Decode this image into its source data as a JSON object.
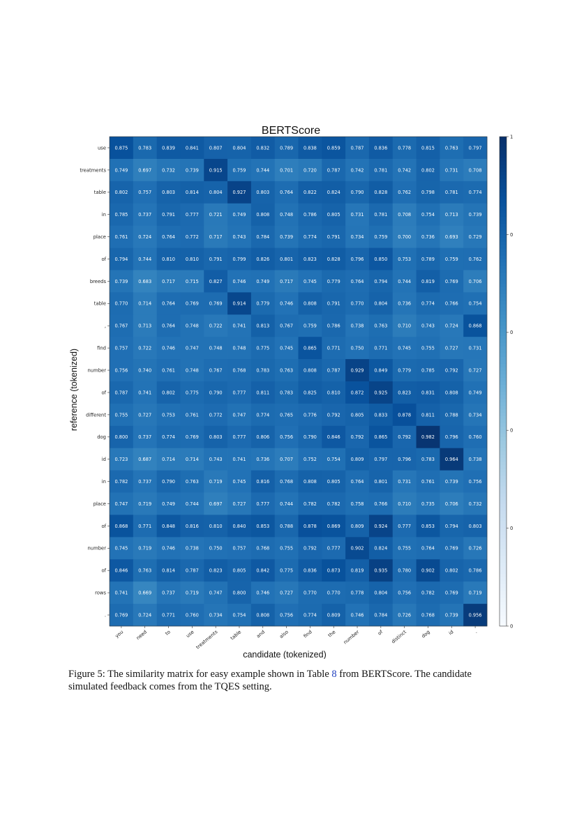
{
  "chart_data": {
    "type": "heatmap",
    "title": "BERTScore",
    "xlabel": "candidate (tokenized)",
    "ylabel": "reference (tokenized)",
    "x_labels": [
      "you",
      "need",
      "to",
      "use",
      "treatments",
      "table",
      "and",
      "also",
      "find",
      "the",
      "number",
      "of",
      "distinct",
      "dog",
      "id",
      "."
    ],
    "y_labels": [
      "use",
      "treatments",
      "table",
      "in",
      "place",
      "of",
      "breeds",
      "table",
      ",",
      "find",
      "number",
      "of",
      "different",
      "dog",
      "id",
      "in",
      "place",
      "of",
      "number",
      "of",
      "rows",
      "."
    ],
    "values": [
      [
        0.875,
        0.783,
        0.839,
        0.841,
        0.807,
        0.804,
        0.832,
        0.789,
        0.838,
        0.859,
        0.787,
        0.836,
        0.778,
        0.815,
        0.763,
        0.797
      ],
      [
        0.749,
        0.697,
        0.732,
        0.739,
        0.915,
        0.759,
        0.744,
        0.701,
        0.72,
        0.787,
        0.742,
        0.781,
        0.742,
        0.802,
        0.731,
        0.708
      ],
      [
        0.802,
        0.757,
        0.803,
        0.814,
        0.804,
        0.927,
        0.803,
        0.764,
        0.822,
        0.824,
        0.79,
        0.828,
        0.762,
        0.798,
        0.781,
        0.774
      ],
      [
        0.785,
        0.737,
        0.791,
        0.777,
        0.721,
        0.749,
        0.808,
        0.748,
        0.786,
        0.805,
        0.731,
        0.781,
        0.708,
        0.754,
        0.713,
        0.739
      ],
      [
        0.761,
        0.724,
        0.764,
        0.772,
        0.717,
        0.743,
        0.784,
        0.739,
        0.774,
        0.791,
        0.734,
        0.759,
        0.7,
        0.736,
        0.693,
        0.729
      ],
      [
        0.794,
        0.744,
        0.81,
        0.81,
        0.791,
        0.799,
        0.826,
        0.801,
        0.823,
        0.828,
        0.796,
        0.85,
        0.753,
        0.789,
        0.759,
        0.762
      ],
      [
        0.739,
        0.683,
        0.717,
        0.715,
        0.827,
        0.746,
        0.749,
        0.717,
        0.745,
        0.779,
        0.764,
        0.794,
        0.744,
        0.819,
        0.769,
        0.706
      ],
      [
        0.77,
        0.714,
        0.764,
        0.769,
        0.769,
        0.914,
        0.779,
        0.746,
        0.808,
        0.791,
        0.77,
        0.804,
        0.736,
        0.774,
        0.766,
        0.754
      ],
      [
        0.767,
        0.713,
        0.764,
        0.748,
        0.722,
        0.741,
        0.813,
        0.767,
        0.759,
        0.786,
        0.738,
        0.763,
        0.71,
        0.743,
        0.724,
        0.868
      ],
      [
        0.757,
        0.722,
        0.746,
        0.747,
        0.748,
        0.748,
        0.775,
        0.745,
        0.865,
        0.771,
        0.75,
        0.771,
        0.745,
        0.755,
        0.727,
        0.731
      ],
      [
        0.756,
        0.74,
        0.761,
        0.748,
        0.767,
        0.768,
        0.783,
        0.763,
        0.808,
        0.787,
        0.929,
        0.849,
        0.779,
        0.785,
        0.792,
        0.727
      ],
      [
        0.787,
        0.741,
        0.802,
        0.775,
        0.79,
        0.777,
        0.811,
        0.783,
        0.825,
        0.81,
        0.872,
        0.925,
        0.823,
        0.831,
        0.808,
        0.749
      ],
      [
        0.755,
        0.727,
        0.753,
        0.761,
        0.772,
        0.747,
        0.774,
        0.765,
        0.776,
        0.792,
        0.805,
        0.833,
        0.878,
        0.811,
        0.788,
        0.734
      ],
      [
        0.8,
        0.737,
        0.774,
        0.769,
        0.803,
        0.777,
        0.806,
        0.756,
        0.79,
        0.846,
        0.792,
        0.865,
        0.792,
        0.982,
        0.796,
        0.76
      ],
      [
        0.723,
        0.687,
        0.714,
        0.714,
        0.743,
        0.741,
        0.736,
        0.707,
        0.752,
        0.754,
        0.809,
        0.797,
        0.796,
        0.783,
        0.964,
        0.738
      ],
      [
        0.782,
        0.737,
        0.79,
        0.763,
        0.719,
        0.745,
        0.816,
        0.768,
        0.808,
        0.805,
        0.764,
        0.801,
        0.731,
        0.761,
        0.739,
        0.756
      ],
      [
        0.747,
        0.719,
        0.749,
        0.744,
        0.697,
        0.727,
        0.777,
        0.744,
        0.782,
        0.782,
        0.758,
        0.766,
        0.71,
        0.735,
        0.706,
        0.732
      ],
      [
        0.868,
        0.771,
        0.848,
        0.816,
        0.81,
        0.84,
        0.853,
        0.788,
        0.878,
        0.869,
        0.809,
        0.924,
        0.777,
        0.853,
        0.794,
        0.803
      ],
      [
        0.745,
        0.719,
        0.746,
        0.738,
        0.75,
        0.757,
        0.768,
        0.755,
        0.792,
        0.777,
        0.902,
        0.824,
        0.755,
        0.764,
        0.769,
        0.726
      ],
      [
        0.846,
        0.763,
        0.814,
        0.787,
        0.823,
        0.805,
        0.842,
        0.775,
        0.836,
        0.873,
        0.819,
        0.935,
        0.78,
        0.902,
        0.802,
        0.786
      ],
      [
        0.741,
        0.669,
        0.737,
        0.719,
        0.747,
        0.8,
        0.746,
        0.727,
        0.77,
        0.77,
        0.778,
        0.804,
        0.756,
        0.782,
        0.769,
        0.719
      ],
      [
        0.769,
        0.724,
        0.771,
        0.76,
        0.734,
        0.754,
        0.808,
        0.756,
        0.774,
        0.809,
        0.746,
        0.784,
        0.726,
        0.768,
        0.739,
        0.956
      ]
    ],
    "colorbar": {
      "min": 0.0,
      "max": 1.0,
      "ticks": [
        "0.0",
        "0.2",
        "0.4",
        "0.6",
        "0.8",
        "1.0"
      ]
    },
    "colormap": "Blues",
    "color_low": "#f7fbff",
    "color_high": "#08306b"
  },
  "caption": {
    "prefix": "Figure 5: The similarity matrix for easy example shown in Table ",
    "ref": "8",
    "suffix": " from BERTScore.  The candidate simulated feedback comes from the TQES setting."
  }
}
